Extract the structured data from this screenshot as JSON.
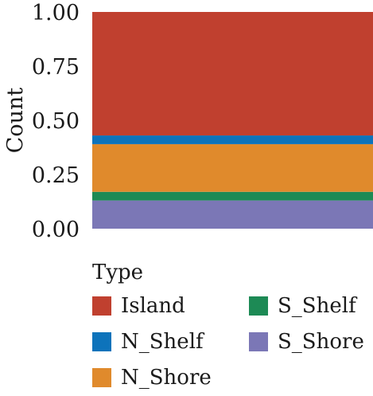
{
  "chart_data": {
    "type": "bar",
    "stacked": true,
    "categories": [
      ""
    ],
    "xlabel": "",
    "ylabel": "Count",
    "ylim": [
      0,
      1
    ],
    "yticks": [
      "0.00",
      "0.25",
      "0.50",
      "0.75",
      "1.00"
    ],
    "grid": false,
    "legend_position": "bottom",
    "legend_title": "Type",
    "series": [
      {
        "name": "S_Shore",
        "values": [
          0.13
        ],
        "color": "#7b77b6"
      },
      {
        "name": "S_Shelf",
        "values": [
          0.04
        ],
        "color": "#1d8a55"
      },
      {
        "name": "N_Shore",
        "values": [
          0.22
        ],
        "color": "#e08a2c"
      },
      {
        "name": "N_Shelf",
        "values": [
          0.04
        ],
        "color": "#0d73bb"
      },
      {
        "name": "Island",
        "values": [
          0.57
        ],
        "color": "#c0402f"
      }
    ]
  },
  "legend": {
    "title": "Type",
    "items": [
      {
        "label": "Island",
        "color": "#c0402f"
      },
      {
        "label": "N_Shelf",
        "color": "#0d73bb"
      },
      {
        "label": "N_Shore",
        "color": "#e08a2c"
      },
      {
        "label": "S_Shelf",
        "color": "#1d8a55"
      },
      {
        "label": "S_Shore",
        "color": "#7b77b6"
      }
    ]
  }
}
